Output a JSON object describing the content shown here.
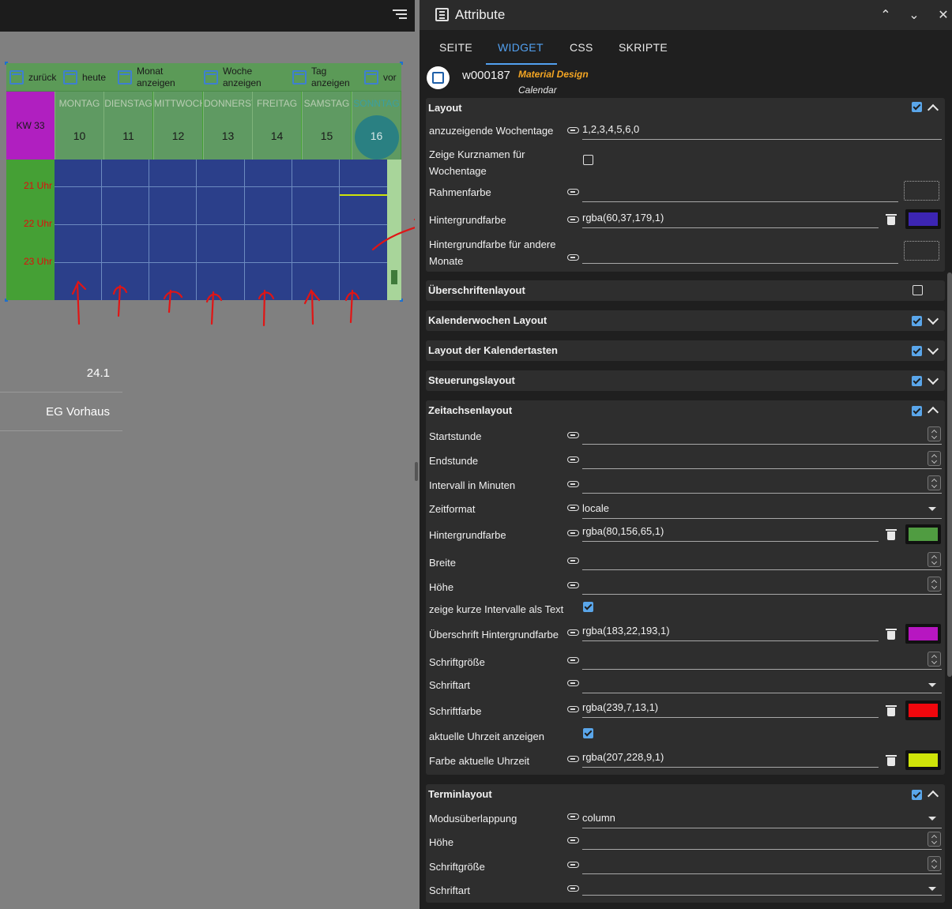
{
  "editor": {
    "calendar": {
      "toolbar": [
        {
          "label": "zurück"
        },
        {
          "label": "heute"
        },
        {
          "label": "Monat\nanzeigen"
        },
        {
          "label": "Woche\nanzeigen"
        },
        {
          "label": "Tag\nanzeigen"
        },
        {
          "label": "vor"
        }
      ],
      "week_label": "KW 33",
      "days": [
        {
          "name": "MONTAG",
          "date": "10"
        },
        {
          "name": "DIENSTAG",
          "date": "11"
        },
        {
          "name": "MITTWOCH",
          "date": "12"
        },
        {
          "name": "DONNERSTAG",
          "date": "13"
        },
        {
          "name": "FREITAG",
          "date": "14"
        },
        {
          "name": "SAMSTAG",
          "date": "15"
        },
        {
          "name": "SONNTAG",
          "date": "16"
        }
      ],
      "hours": [
        "21 Uhr",
        "22 Uhr",
        "23 Uhr"
      ]
    },
    "list": [
      "24.1",
      "EG Vorhaus"
    ]
  },
  "panel": {
    "title": "Attribute",
    "controls": {
      "collapse_up": "⌃",
      "expand": "⌄",
      "close": "✕"
    },
    "tabs": [
      "SEITE",
      "WIDGET",
      "CSS",
      "SKRIPTE"
    ],
    "active_tab": "WIDGET",
    "widget": {
      "id": "w000187",
      "set": "Material Design",
      "name": "Calendar"
    },
    "sections": {
      "layout": {
        "title": "Layout",
        "rows": {
          "wochentage": {
            "label": "anzuzeigende Wochentage",
            "value": "1,2,3,4,5,6,0"
          },
          "kurznamen": {
            "label": "Zeige Kurznamen für Wochentage",
            "checked": false
          },
          "rahmenfarbe": {
            "label": "Rahmenfarbe",
            "value": ""
          },
          "hintergrund": {
            "label": "Hintergrundfarbe",
            "value": "rgba(60,37,179,1)",
            "color": "#3c25b3"
          },
          "hintergrund_andere": {
            "label": "Hintergrundfarbe für andere Monate",
            "value": ""
          }
        }
      },
      "ueberschriften": {
        "title": "Überschriftenlayout",
        "checked": false
      },
      "kalenderwochen": {
        "title": "Kalenderwochen Layout",
        "checked": true
      },
      "kalendertasten": {
        "title": "Layout der Kalendertasten",
        "checked": true
      },
      "steuerung": {
        "title": "Steuerungslayout",
        "checked": true
      },
      "zeitachse": {
        "title": "Zeitachsenlayout",
        "rows": {
          "startstunde": {
            "label": "Startstunde",
            "value": ""
          },
          "endstunde": {
            "label": "Endstunde",
            "value": ""
          },
          "intervall": {
            "label": "Intervall in Minuten",
            "value": ""
          },
          "zeitformat": {
            "label": "Zeitformat",
            "value": "locale"
          },
          "hintergrund": {
            "label": "Hintergrundfarbe",
            "value": "rgba(80,156,65,1)",
            "color": "#509c41"
          },
          "breite": {
            "label": "Breite",
            "value": ""
          },
          "hoehe": {
            "label": "Höhe",
            "value": ""
          },
          "kurze_intervalle": {
            "label": "zeige kurze Intervalle als Text",
            "checked": true
          },
          "ueberschrift_bg": {
            "label": "Überschrift Hintergrundfarbe",
            "value": "rgba(183,22,193,1)",
            "color": "#b716c1"
          },
          "schriftgroesse": {
            "label": "Schriftgröße",
            "value": ""
          },
          "schriftart": {
            "label": "Schriftart",
            "value": ""
          },
          "schriftfarbe": {
            "label": "Schriftfarbe",
            "value": "rgba(239,7,13,1)",
            "color": "#ef070d"
          },
          "uhrzeit_anzeigen": {
            "label": "aktuelle Uhrzeit anzeigen",
            "checked": true
          },
          "farbe_uhrzeit": {
            "label": "Farbe aktuelle Uhrzeit",
            "value": "rgba(207,228,9,1)",
            "color": "#cfe409"
          }
        }
      },
      "termin": {
        "title": "Terminlayout",
        "rows": {
          "modus": {
            "label": "Modusüberlappung",
            "value": "column"
          },
          "hoehe": {
            "label": "Höhe",
            "value": ""
          },
          "schriftgroesse": {
            "label": "Schriftgröße",
            "value": ""
          },
          "schriftart": {
            "label": "Schriftart",
            "value": ""
          }
        }
      }
    }
  }
}
